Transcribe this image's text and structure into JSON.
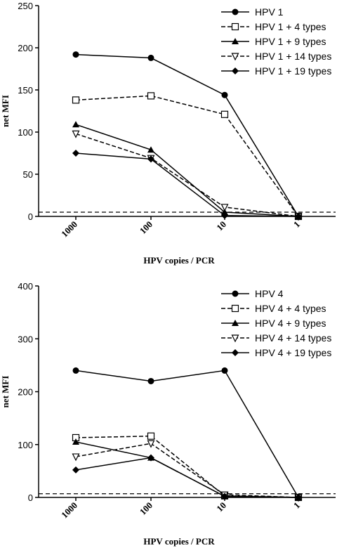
{
  "chart_data": [
    {
      "type": "line",
      "categories": [
        "1000",
        "100",
        "10",
        "1"
      ],
      "xlabel": "HPV copies / PCR",
      "ylabel": "net MFI",
      "ylim": [
        0,
        250
      ],
      "yticks": [
        "0",
        "50",
        "100",
        "150",
        "200",
        "250"
      ],
      "threshold": 5,
      "legend_position": "top-right",
      "series": [
        {
          "name": "HPV 1",
          "marker": "circle",
          "dash": "solid",
          "values": [
            192,
            188,
            144,
            0
          ]
        },
        {
          "name": "HPV 1 + 4 types",
          "marker": "square-open",
          "dash": "dashed",
          "values": [
            138,
            143,
            121,
            0
          ]
        },
        {
          "name": "HPV 1 + 9 types",
          "marker": "triangle-up",
          "dash": "solid",
          "values": [
            109,
            79,
            5,
            0
          ]
        },
        {
          "name": "HPV 1 + 14 types",
          "marker": "triangle-down-open",
          "dash": "dashed",
          "values": [
            98,
            69,
            11,
            0
          ]
        },
        {
          "name": "HPV 1 + 19 types",
          "marker": "diamond",
          "dash": "solid",
          "values": [
            75,
            68,
            1,
            0
          ]
        }
      ]
    },
    {
      "type": "line",
      "categories": [
        "1000",
        "100",
        "10",
        "1"
      ],
      "xlabel": "HPV copies / PCR",
      "ylabel": "net MFI",
      "ylim": [
        0,
        400
      ],
      "yticks": [
        "0",
        "100",
        "200",
        "300",
        "400"
      ],
      "threshold": 7,
      "legend_position": "top-right",
      "series": [
        {
          "name": "HPV 4",
          "marker": "circle",
          "dash": "solid",
          "values": [
            240,
            220,
            240,
            0
          ]
        },
        {
          "name": "HPV 4 + 4 types",
          "marker": "square-open",
          "dash": "dashed",
          "values": [
            113,
            116,
            3,
            0
          ]
        },
        {
          "name": "HPV 4 + 9 types",
          "marker": "triangle-up",
          "dash": "solid",
          "values": [
            105,
            75,
            2,
            0
          ]
        },
        {
          "name": "HPV 4 + 14 types",
          "marker": "triangle-down-open",
          "dash": "dashed",
          "values": [
            77,
            102,
            5,
            0
          ]
        },
        {
          "name": "HPV 4 + 19 types",
          "marker": "diamond",
          "dash": "solid",
          "values": [
            52,
            75,
            2,
            0
          ]
        }
      ]
    }
  ]
}
